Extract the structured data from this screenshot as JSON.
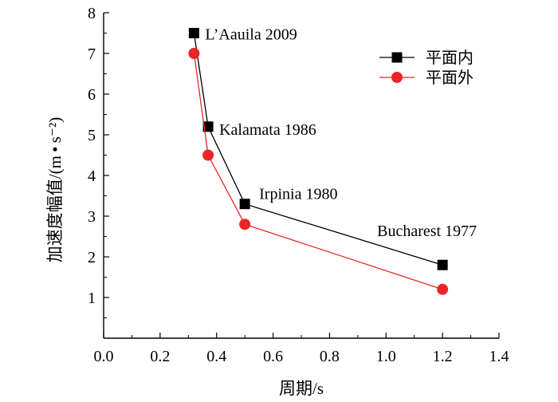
{
  "chart_data": {
    "type": "line",
    "xlabel": "周期/s",
    "ylabel": "加速度幅值/(m • s⁻²)",
    "xlim": [
      0.0,
      1.4
    ],
    "ylim": [
      0,
      8
    ],
    "xticks": [
      0.0,
      0.2,
      0.4,
      0.6,
      0.8,
      1.0,
      1.2,
      1.4
    ],
    "xtick_labels": [
      "0.0",
      "0.2",
      "0.4",
      "0.6",
      "0.8",
      "1.0",
      "1.2",
      "1.4"
    ],
    "yticks": [
      1,
      2,
      3,
      4,
      5,
      6,
      7,
      8
    ],
    "ytick_labels": [
      "1",
      "2",
      "3",
      "4",
      "5",
      "6",
      "7",
      "8"
    ],
    "grid": false,
    "legend_position": "top-right",
    "series": [
      {
        "name": "平面内",
        "color": "#000000",
        "marker": "square",
        "x": [
          0.32,
          0.37,
          0.5,
          1.2
        ],
        "y": [
          7.5,
          5.2,
          3.3,
          1.8
        ]
      },
      {
        "name": "平面外",
        "color": "#e8262a",
        "marker": "circle",
        "x": [
          0.32,
          0.37,
          0.5,
          1.2
        ],
        "y": [
          7.0,
          4.5,
          2.8,
          1.2
        ]
      }
    ],
    "annotations": [
      {
        "text": "L’Aauila 2009",
        "x": 0.32,
        "y": 7.5
      },
      {
        "text": "Kalamata 1986",
        "x": 0.37,
        "y": 5.2
      },
      {
        "text": "Irpinia 1980",
        "x": 0.5,
        "y": 3.3
      },
      {
        "text": "Bucharest 1977",
        "x": 1.2,
        "y": 1.8
      }
    ]
  }
}
